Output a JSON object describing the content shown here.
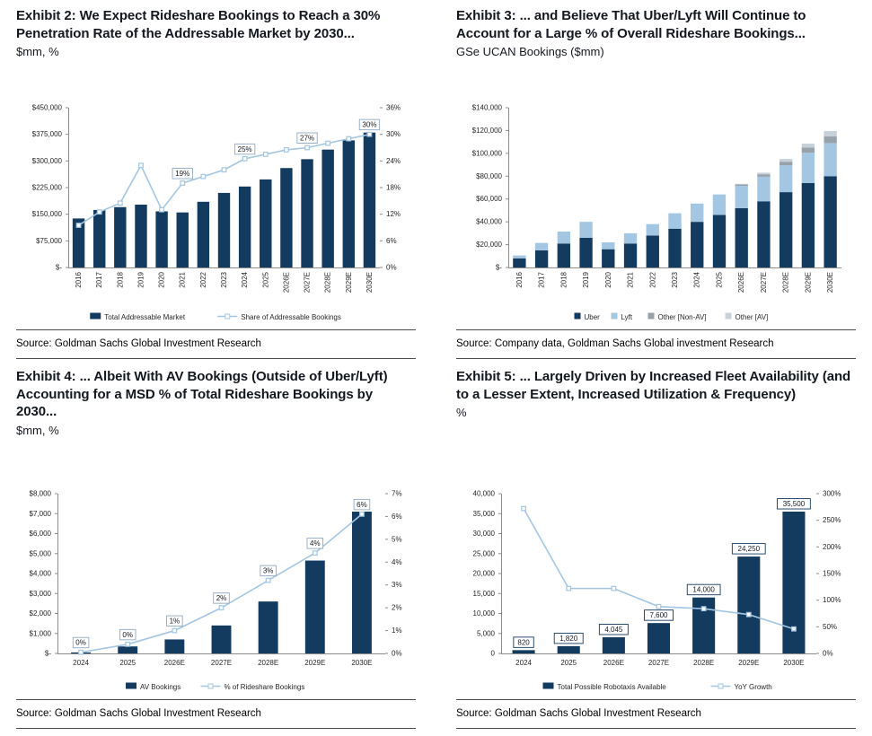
{
  "page": {
    "panels": [
      {
        "id": "exhibit-2",
        "title": "Exhibit 2: We Expect Rideshare Bookings to Reach a 30% Penetration Rate of the Addressable Market by 2030...",
        "subtitle": "$mm, %",
        "source": "Source: Goldman Sachs Global Investment Research"
      },
      {
        "id": "exhibit-3",
        "title": "Exhibit 3: ... and Believe That Uber/Lyft Will Continue to Account for a Large % of Overall Rideshare Bookings...",
        "subtitle": "GSe UCAN Bookings ($mm)",
        "source": "Source: Company data, Goldman Sachs Global investment Research"
      },
      {
        "id": "exhibit-4",
        "title": "Exhibit 4: ... Albeit With AV Bookings (Outside of Uber/Lyft) Accounting for a MSD % of Total Rideshare Bookings by 2030...",
        "subtitle": "$mm, %",
        "source": "Source: Goldman Sachs Global Investment Research"
      },
      {
        "id": "exhibit-5",
        "title": "Exhibit 5: ... Largely Driven by Increased Fleet Availability (and to a Lesser Extent, Increased Utilization & Frequency)",
        "subtitle": "%",
        "source": "Source: Goldman Sachs Global Investment Research"
      }
    ]
  },
  "colors": {
    "navy": "#133a5f",
    "light_blue": "#a3c6e3",
    "gray": "#98a2ab",
    "light_gray": "#c8d1d9"
  },
  "chart_data": [
    {
      "type": "bar",
      "subtype": "combo-bar-line",
      "title": "Rideshare TAM and penetration",
      "categories": [
        "2016",
        "2017",
        "2018",
        "2019",
        "2020",
        "2021",
        "2022",
        "2023",
        "2024",
        "2025",
        "2026E",
        "2027E",
        "2028E",
        "2029E",
        "2030E"
      ],
      "bar_series": {
        "name": "Total Addressable Market",
        "color": "#133a5f",
        "values": [
          138000,
          162000,
          170000,
          177000,
          158000,
          155000,
          185000,
          210000,
          228000,
          248000,
          280000,
          305000,
          332000,
          358000,
          380000
        ]
      },
      "line_series": {
        "name": "Share of Addressable Bookings",
        "color": "#a3c6e3",
        "axis": "right",
        "values": [
          9.5,
          12.5,
          14.5,
          23,
          13,
          19,
          20.5,
          22,
          24.5,
          25.5,
          26.5,
          27,
          28,
          29,
          30
        ]
      },
      "left_axis": {
        "min": 0,
        "max": 450000,
        "step": 75000,
        "labels": [
          "$-",
          "$75,000",
          "$150,000",
          "$225,000",
          "$300,000",
          "$375,000",
          "$450,000"
        ]
      },
      "right_axis": {
        "min": 0,
        "max": 36,
        "step": 6,
        "labels": [
          "0%",
          "6%",
          "12%",
          "18%",
          "24%",
          "30%",
          "36%"
        ]
      },
      "annotations": [
        {
          "cat": "2021",
          "on": "line",
          "text": "19%"
        },
        {
          "cat": "2024",
          "on": "line",
          "text": "25%"
        },
        {
          "cat": "2027E",
          "on": "line",
          "text": "27%"
        },
        {
          "cat": "2030E",
          "on": "line",
          "text": "30%"
        }
      ],
      "annotation_box_color": "#8fa9c4",
      "legend": [
        {
          "swatch": "bar",
          "color": "#133a5f",
          "label": "Total Addressable Market"
        },
        {
          "swatch": "line",
          "color": "#a3c6e3",
          "label": "Share of Addressable Bookings"
        }
      ]
    },
    {
      "type": "bar",
      "subtype": "stacked-bar",
      "title": "GSe UCAN Bookings ($mm)",
      "categories": [
        "2016",
        "2017",
        "2018",
        "2019",
        "2020",
        "2021",
        "2022",
        "2023",
        "2024",
        "2025",
        "2026E",
        "2027E",
        "2028E",
        "2029E",
        "2030E"
      ],
      "stacked_series": [
        {
          "name": "Uber",
          "color": "#133a5f",
          "values": [
            8000,
            15000,
            21000,
            26000,
            16000,
            21000,
            28000,
            34000,
            40000,
            46000,
            52000,
            58000,
            66000,
            74000,
            80000
          ]
        },
        {
          "name": "Lyft",
          "color": "#a3c6e3",
          "values": [
            2500,
            6500,
            10500,
            14000,
            6000,
            9000,
            10000,
            13500,
            16000,
            18000,
            19500,
            21500,
            23500,
            26500,
            29000
          ]
        },
        {
          "name": "Other [Non-AV]",
          "color": "#98a2ab",
          "values": [
            0,
            0,
            0,
            0,
            0,
            0,
            0,
            0,
            0,
            0,
            1200,
            2200,
            3200,
            4500,
            5800
          ]
        },
        {
          "name": "Other [AV]",
          "color": "#c8d1d9",
          "values": [
            0,
            0,
            0,
            0,
            0,
            0,
            0,
            0,
            0,
            0,
            600,
            1400,
            2400,
            3500,
            4800
          ]
        }
      ],
      "left_axis": {
        "min": 0,
        "max": 140000,
        "step": 20000,
        "labels": [
          "$-",
          "$20,000",
          "$40,000",
          "$60,000",
          "$80,000",
          "$100,000",
          "$120,000",
          "$140,000"
        ]
      },
      "legend": [
        {
          "swatch": "square",
          "color": "#133a5f",
          "label": "Uber"
        },
        {
          "swatch": "square",
          "color": "#a3c6e3",
          "label": "Lyft"
        },
        {
          "swatch": "square",
          "color": "#98a2ab",
          "label": "Other [Non-AV]"
        },
        {
          "swatch": "square",
          "color": "#c8d1d9",
          "label": "Other [AV]"
        }
      ]
    },
    {
      "type": "bar",
      "subtype": "combo-bar-line",
      "title": "AV bookings and share of rideshare",
      "categories": [
        "2024",
        "2025",
        "2026E",
        "2027E",
        "2028E",
        "2029E",
        "2030E"
      ],
      "bar_series": {
        "name": "AV Bookings",
        "color": "#133a5f",
        "values": [
          50,
          350,
          700,
          1400,
          2600,
          4650,
          7100
        ]
      },
      "line_series": {
        "name": "% of Rideshare Bookings",
        "color": "#a3c6e3",
        "axis": "right",
        "values": [
          0.05,
          0.4,
          1,
          2,
          3.2,
          4.4,
          6.1
        ]
      },
      "left_axis": {
        "min": 0,
        "max": 8000,
        "step": 1000,
        "labels": [
          "$-",
          "$1,000",
          "$2,000",
          "$3,000",
          "$4,000",
          "$5,000",
          "$6,000",
          "$7,000",
          "$8,000"
        ]
      },
      "right_axis": {
        "min": 0,
        "max": 7,
        "step": 1,
        "labels": [
          "0%",
          "1%",
          "2%",
          "3%",
          "4%",
          "5%",
          "6%",
          "7%"
        ]
      },
      "annotations": [
        {
          "cat": "2024",
          "on": "line",
          "text": "0%"
        },
        {
          "cat": "2025",
          "on": "line",
          "text": "0%"
        },
        {
          "cat": "2026E",
          "on": "line",
          "text": "1%"
        },
        {
          "cat": "2027E",
          "on": "line",
          "text": "2%"
        },
        {
          "cat": "2028E",
          "on": "line",
          "text": "3%"
        },
        {
          "cat": "2029E",
          "on": "line",
          "text": "4%"
        },
        {
          "cat": "2030E",
          "on": "line",
          "text": "6%"
        }
      ],
      "annotation_box_color": "#8fa9c4",
      "legend": [
        {
          "swatch": "bar",
          "color": "#133a5f",
          "label": "AV Bookings"
        },
        {
          "swatch": "line",
          "color": "#a3c6e3",
          "label": "% of Rideshare Bookings"
        }
      ]
    },
    {
      "type": "bar",
      "subtype": "combo-bar-line",
      "title": "Robotaxi fleet availability and YoY growth",
      "categories": [
        "2024",
        "2025",
        "2026E",
        "2027E",
        "2028E",
        "2029E",
        "2030E"
      ],
      "bar_series": {
        "name": "Total Possible Robotaxis Available",
        "color": "#133a5f",
        "values": [
          820,
          1820,
          4045,
          7600,
          14000,
          24250,
          35500
        ]
      },
      "line_series": {
        "name": "YoY Growth",
        "color": "#a3c6e3",
        "axis": "right",
        "values": [
          272,
          122,
          122,
          88,
          84,
          73,
          46
        ]
      },
      "left_axis": {
        "min": 0,
        "max": 40000,
        "step": 5000,
        "labels": [
          "0",
          "5,000",
          "10,000",
          "15,000",
          "20,000",
          "25,000",
          "30,000",
          "35,000",
          "40,000"
        ]
      },
      "right_axis": {
        "min": 0,
        "max": 300,
        "step": 50,
        "labels": [
          "0%",
          "50%",
          "100%",
          "150%",
          "200%",
          "250%",
          "300%"
        ]
      },
      "annotations": [
        {
          "cat": "2024",
          "on": "bar",
          "text": "820"
        },
        {
          "cat": "2025",
          "on": "bar",
          "text": "1,820"
        },
        {
          "cat": "2026E",
          "on": "bar",
          "text": "4,045"
        },
        {
          "cat": "2027E",
          "on": "bar",
          "text": "7,600"
        },
        {
          "cat": "2028E",
          "on": "bar",
          "text": "14,000"
        },
        {
          "cat": "2029E",
          "on": "bar",
          "text": "24,250"
        },
        {
          "cat": "2030E",
          "on": "bar",
          "text": "35,500"
        }
      ],
      "annotation_box_color": "#133a5f",
      "legend": [
        {
          "swatch": "bar",
          "color": "#133a5f",
          "label": "Total Possible Robotaxis Available"
        },
        {
          "swatch": "line",
          "color": "#a3c6e3",
          "label": "YoY Growth"
        }
      ]
    }
  ]
}
